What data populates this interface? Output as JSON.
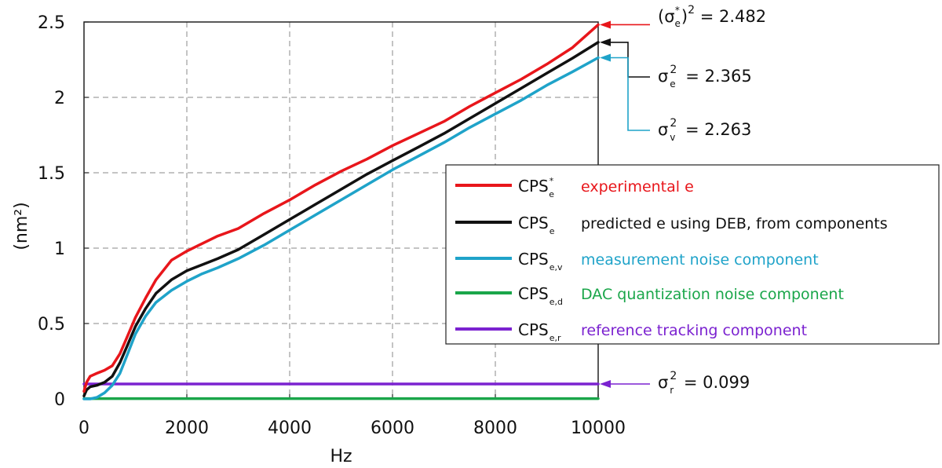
{
  "chart_data": {
    "type": "line",
    "xlabel": "Hz",
    "ylabel": "(nm²)",
    "xlim": [
      0,
      10000
    ],
    "ylim": [
      0,
      2.5
    ],
    "grid": true,
    "legend_placement": "right",
    "xticks": [
      0,
      2000,
      4000,
      6000,
      8000,
      10000
    ],
    "xtick_labels": [
      "0",
      "2000",
      "4000",
      "6000",
      "8000",
      "10000"
    ],
    "yticks": [
      0,
      0.5,
      1,
      1.5,
      2,
      2.5
    ],
    "ytick_labels": [
      "0",
      "0.5",
      "1",
      "1.5",
      "2",
      "2.5"
    ],
    "series": [
      {
        "name": "experimental e",
        "legend_symbol": "CPS",
        "legend_sub": "e",
        "legend_sup": "*",
        "color": "#e8161b",
        "x": [
          0,
          50,
          120,
          250,
          400,
          550,
          700,
          850,
          1000,
          1200,
          1400,
          1700,
          2000,
          2300,
          2600,
          3000,
          3500,
          4000,
          4500,
          5000,
          5500,
          6000,
          6500,
          7000,
          7500,
          8000,
          8500,
          9000,
          9500,
          10000
        ],
        "values": [
          0.05,
          0.11,
          0.15,
          0.17,
          0.19,
          0.22,
          0.3,
          0.42,
          0.54,
          0.67,
          0.79,
          0.92,
          0.98,
          1.03,
          1.08,
          1.13,
          1.23,
          1.32,
          1.42,
          1.51,
          1.59,
          1.68,
          1.76,
          1.84,
          1.94,
          2.03,
          2.12,
          2.22,
          2.33,
          2.482
        ]
      },
      {
        "name": "predicted e using DEB, from components",
        "legend_symbol": "CPS",
        "legend_sub": "e",
        "legend_sup": "",
        "color": "#111111",
        "x": [
          0,
          50,
          120,
          250,
          400,
          550,
          700,
          850,
          1000,
          1200,
          1400,
          1700,
          2000,
          2300,
          2600,
          3000,
          3500,
          4000,
          4500,
          5000,
          5500,
          6000,
          6500,
          7000,
          7500,
          8000,
          8500,
          9000,
          9500,
          10000
        ],
        "values": [
          0.02,
          0.06,
          0.08,
          0.09,
          0.11,
          0.15,
          0.24,
          0.36,
          0.48,
          0.6,
          0.7,
          0.79,
          0.85,
          0.89,
          0.93,
          0.99,
          1.09,
          1.19,
          1.29,
          1.39,
          1.49,
          1.58,
          1.67,
          1.76,
          1.86,
          1.96,
          2.06,
          2.16,
          2.26,
          2.365
        ]
      },
      {
        "name": "measurement noise component",
        "legend_symbol": "CPS",
        "legend_sub": "e,v",
        "legend_sup": "",
        "color": "#1fa3c9",
        "x": [
          0,
          50,
          120,
          250,
          400,
          550,
          700,
          850,
          1000,
          1200,
          1400,
          1700,
          2000,
          2300,
          2600,
          3000,
          3500,
          4000,
          4500,
          5000,
          5500,
          6000,
          6500,
          7000,
          7500,
          8000,
          8500,
          9000,
          9500,
          10000
        ],
        "values": [
          0,
          0,
          0,
          0.01,
          0.04,
          0.09,
          0.17,
          0.3,
          0.43,
          0.55,
          0.64,
          0.72,
          0.78,
          0.83,
          0.87,
          0.93,
          1.02,
          1.12,
          1.22,
          1.32,
          1.42,
          1.52,
          1.61,
          1.7,
          1.8,
          1.89,
          1.98,
          2.08,
          2.17,
          2.263
        ]
      },
      {
        "name": "DAC quantization noise component",
        "legend_symbol": "CPS",
        "legend_sub": "e,d",
        "legend_sup": "",
        "color": "#1aa64a",
        "x": [
          0,
          10000
        ],
        "values": [
          0.002,
          0.002
        ]
      },
      {
        "name": "reference tracking component",
        "legend_symbol": "CPS",
        "legend_sub": "e,r",
        "legend_sup": "",
        "color": "#7b22d0",
        "x": [
          0,
          10000
        ],
        "values": [
          0.099,
          0.099
        ]
      }
    ],
    "annotations": [
      {
        "label_main": "(σ",
        "label_sub": "e",
        "label_sup": "*",
        "label_close": ")",
        "label_exp": "2",
        "label_value": "= 2.482",
        "y": 2.482,
        "color": "#e8161b"
      },
      {
        "label_main": "σ",
        "label_sub": "e",
        "label_sup": "2",
        "label_value": "= 2.365",
        "y": 2.365,
        "color": "#111111"
      },
      {
        "label_main": "σ",
        "label_sub": "v",
        "label_sup": "2",
        "label_value": "= 2.263",
        "y": 2.263,
        "color": "#1fa3c9"
      },
      {
        "label_main": "σ",
        "label_sub": "r",
        "label_sup": "2",
        "label_value": "= 0.099",
        "y": 0.099,
        "color": "#7b22d0"
      }
    ]
  }
}
